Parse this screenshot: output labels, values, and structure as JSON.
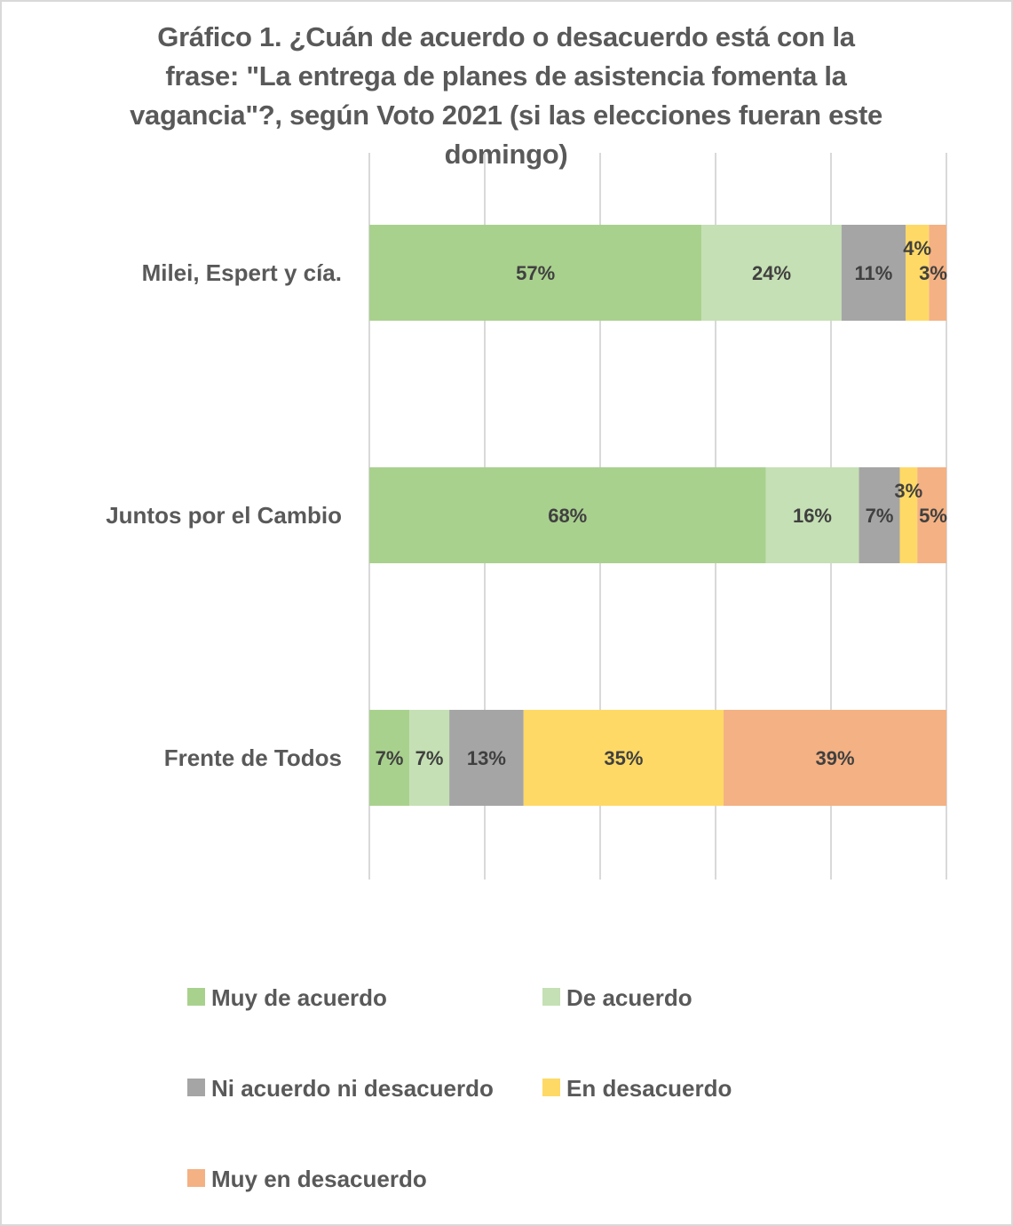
{
  "chart_data": {
    "type": "bar",
    "orientation": "horizontal",
    "stacked": "percent",
    "title": "Gráfico 1. ¿Cuán de acuerdo o desacuerdo está con la frase: \"La entrega de planes de asistencia fomenta la vagancia\"?, según Voto 2021 (si las elecciones fueran este domingo)",
    "title_lines": [
      "Gráfico 1. ¿Cuán de acuerdo o desacuerdo está con la",
      "frase: \"La entrega de planes de asistencia fomenta la",
      "vagancia\"?, según Voto 2021 (si las elecciones fueran este",
      "domingo)"
    ],
    "categories": [
      "Milei, Espert y cía.",
      "Juntos por el Cambio",
      "Frente de Todos"
    ],
    "xlim": [
      0,
      100
    ],
    "grid": true,
    "legend_position": "bottom",
    "series": [
      {
        "name": "Muy de acuerdo",
        "color": "#a9d18e",
        "values": [
          57,
          68,
          7
        ],
        "labels": [
          "57%",
          "68%",
          "7%"
        ]
      },
      {
        "name": "De acuerdo",
        "color": "#c5e0b4",
        "values": [
          24,
          16,
          7
        ],
        "labels": [
          "24%",
          "16%",
          "7%"
        ]
      },
      {
        "name": "Ni acuerdo ni desacuerdo",
        "color": "#a5a5a5",
        "values": [
          11,
          7,
          13
        ],
        "labels": [
          "11%",
          "7%",
          "13%"
        ]
      },
      {
        "name": "En desacuerdo",
        "color": "#ffd966",
        "values": [
          4,
          3,
          35
        ],
        "labels": [
          "4%",
          "3%",
          "35%"
        ]
      },
      {
        "name": "Muy en desacuerdo",
        "color": "#f4b183",
        "values": [
          3,
          5,
          39
        ],
        "labels": [
          "3%",
          "5%",
          "39%"
        ]
      }
    ]
  }
}
